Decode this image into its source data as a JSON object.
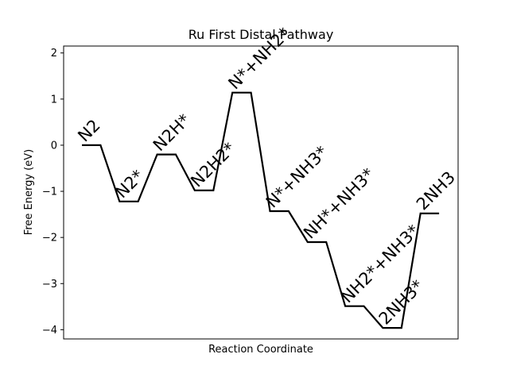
{
  "chart_data": {
    "type": "line",
    "title": "Ru First Distal Pathway",
    "xlabel": "Reaction Coordinate",
    "ylabel": "Free Energy (eV)",
    "ylim": [
      -4.2,
      2.15
    ],
    "yticks": [
      2,
      1,
      0,
      -1,
      -2,
      -3,
      -4
    ],
    "x_ticks_visible": false,
    "grid": false,
    "line_color": "#000000",
    "states": [
      {
        "label": "N2",
        "energy": 0.0
      },
      {
        "label": "N2*",
        "energy": -1.22
      },
      {
        "label": "N2H*",
        "energy": -0.2
      },
      {
        "label": "N2H2*",
        "energy": -0.98
      },
      {
        "label": "N*+NH2*",
        "energy": 1.14
      },
      {
        "label": "N*+NH3*",
        "energy": -1.43
      },
      {
        "label": "NH*+NH3*",
        "energy": -2.1
      },
      {
        "label": "NH2*+NH3*",
        "energy": -3.49
      },
      {
        "label": "2NH3*",
        "energy": -3.96
      },
      {
        "label": "2NH3",
        "energy": -1.48
      }
    ]
  }
}
